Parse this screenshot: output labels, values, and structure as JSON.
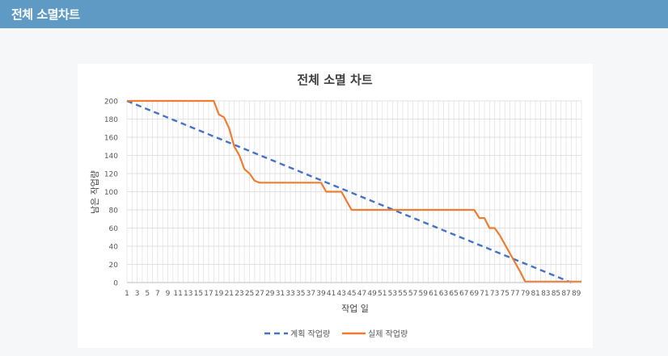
{
  "header": {
    "title": "전체 소멸차트"
  },
  "chart_data": {
    "type": "line",
    "title": "전체 소멸 차트",
    "xlabel": "작업 일",
    "ylabel": "남은 작업량",
    "ylim": [
      0,
      200
    ],
    "yticks": [
      0,
      20,
      40,
      60,
      80,
      100,
      120,
      140,
      160,
      180,
      200
    ],
    "x_range": [
      1,
      90
    ],
    "xtick_labels": [
      "1",
      "3",
      "5",
      "7",
      "9",
      "11",
      "13",
      "15",
      "17",
      "19",
      "21",
      "23",
      "25",
      "27",
      "29",
      "31",
      "33",
      "35",
      "37",
      "39",
      "41",
      "43",
      "45",
      "47",
      "49",
      "51",
      "53",
      "55",
      "57",
      "59",
      "61",
      "63",
      "65",
      "67",
      "69",
      "71",
      "73",
      "75",
      "77",
      "79",
      "81",
      "83",
      "85",
      "87",
      "89"
    ],
    "grid": true,
    "legend_position": "bottom",
    "series": [
      {
        "name": "계획 작업량",
        "color": "#4472c4",
        "style": "dashed",
        "points": [
          [
            1,
            200
          ],
          [
            88,
            0
          ]
        ]
      },
      {
        "name": "실제 작업량",
        "color": "#ed7d31",
        "style": "solid",
        "points": [
          [
            1,
            200
          ],
          [
            18,
            200
          ],
          [
            19,
            185
          ],
          [
            20,
            182
          ],
          [
            21,
            170
          ],
          [
            22,
            150
          ],
          [
            23,
            140
          ],
          [
            24,
            125
          ],
          [
            25,
            120
          ],
          [
            26,
            112
          ],
          [
            27,
            110
          ],
          [
            39,
            110
          ],
          [
            40,
            100
          ],
          [
            43,
            100
          ],
          [
            44,
            90
          ],
          [
            45,
            80
          ],
          [
            69,
            80
          ],
          [
            70,
            71
          ],
          [
            71,
            71
          ],
          [
            72,
            60
          ],
          [
            73,
            60
          ],
          [
            74,
            52
          ],
          [
            75,
            42
          ],
          [
            76,
            32
          ],
          [
            77,
            22
          ],
          [
            78,
            12
          ],
          [
            79,
            1
          ],
          [
            90,
            1
          ]
        ]
      }
    ]
  }
}
